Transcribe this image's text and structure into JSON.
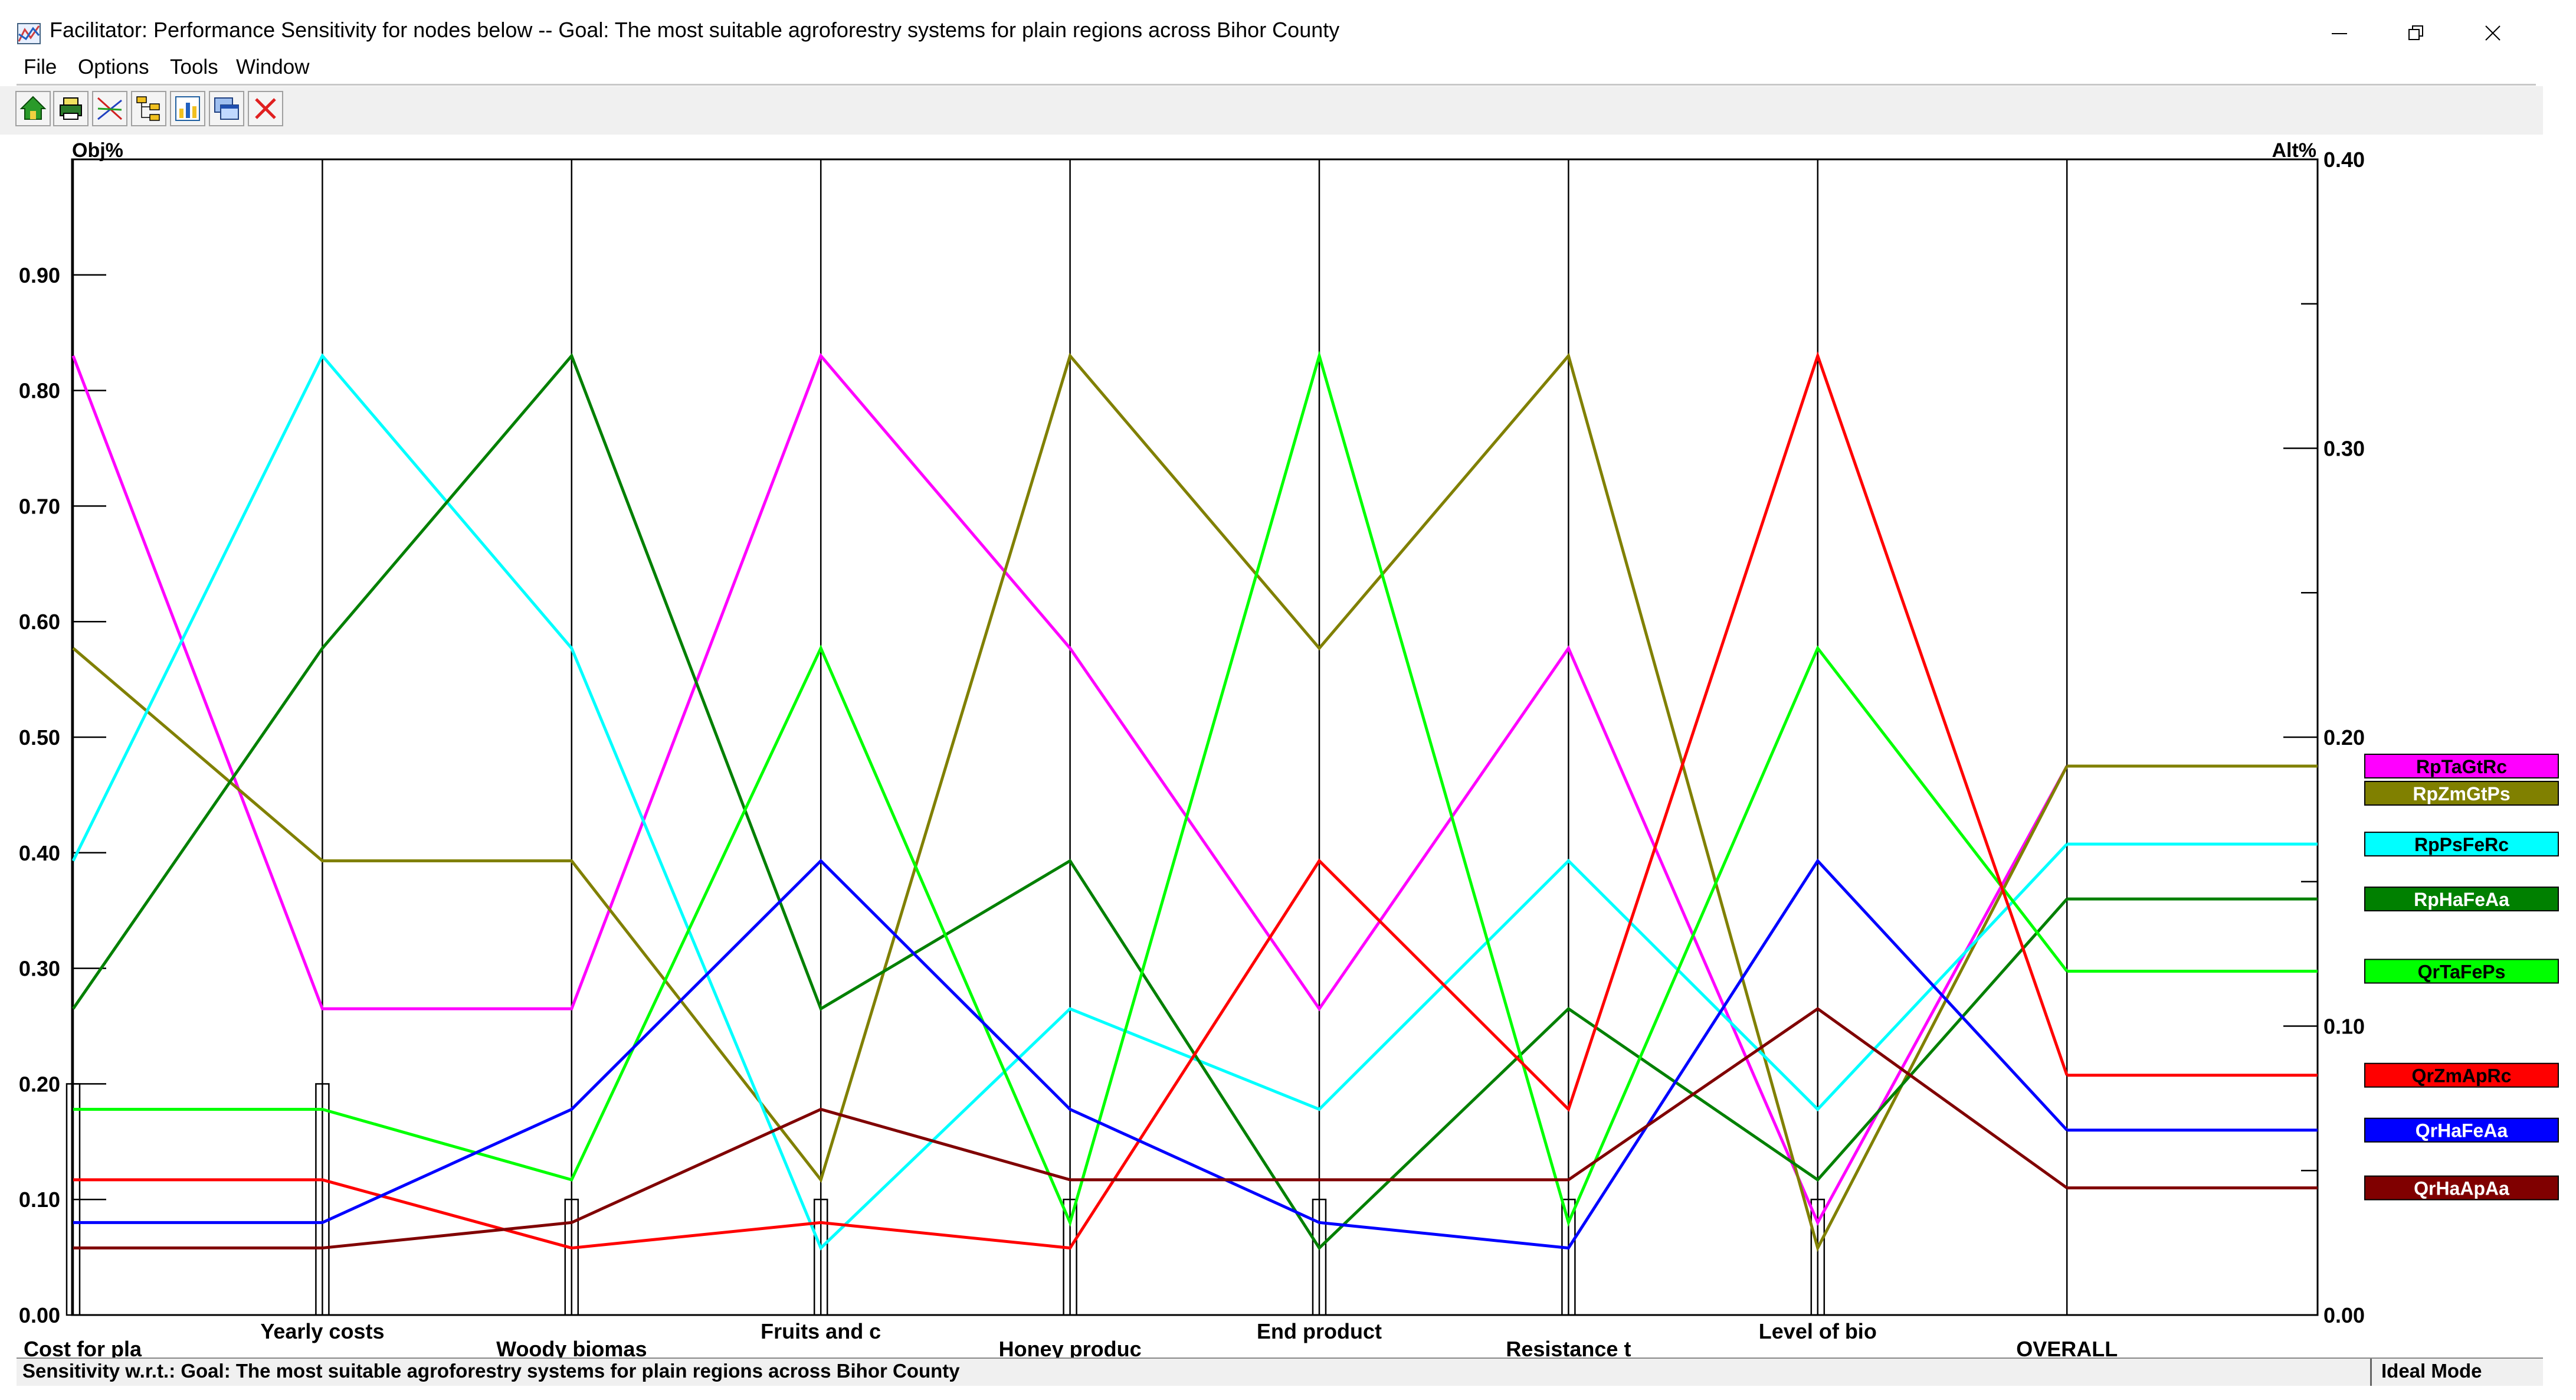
{
  "window": {
    "title": "Facilitator: Performance Sensitivity for nodes below -- Goal: The most suitable agroforestry systems for plain regions across Bihor County"
  },
  "menu": [
    "File",
    "Options",
    "Tools",
    "Window"
  ],
  "toolbar_icons": [
    "home-icon",
    "print-icon",
    "sensitivity-icon",
    "tree-icon",
    "chart-icon",
    "windows-icon",
    "close-x-icon"
  ],
  "status": {
    "text": "Sensitivity w.r.t.: Goal: The most suitable agroforestry systems for plain regions across Bihor County",
    "mode": "Ideal Mode"
  },
  "chart_data": {
    "type": "line",
    "left_axis_label": "Obj%",
    "right_axis_label": "Alt%",
    "left_ticks": [
      "0.00",
      "0.10",
      "0.20",
      "0.30",
      "0.40",
      "0.50",
      "0.60",
      "0.70",
      "0.80",
      "0.90"
    ],
    "right_ticks": [
      "0.00",
      "0.10",
      "0.20",
      "0.30",
      "0.40"
    ],
    "left_ylim": [
      0,
      1
    ],
    "right_ylim": [
      0,
      0.4
    ],
    "criteria": [
      "Cost for pla",
      "Yearly costs",
      "Woody biomas",
      "Fruits and c",
      "Honey produc",
      "End product",
      "Resistance t",
      "Level of bio"
    ],
    "overall_label": "OVERALL",
    "criteria_priority": [
      0.2,
      0.2,
      0.1,
      0.1,
      0.1,
      0.1,
      0.1,
      0.1
    ],
    "series": [
      {
        "name": "RpTaGtRc",
        "color": "#ff00ff",
        "values": [
          0.83,
          0.265,
          0.265,
          0.83,
          0.577,
          0.265,
          0.577,
          0.08
        ],
        "overall": 0.19
      },
      {
        "name": "RpZmGtPs",
        "color": "#808000",
        "values": [
          0.577,
          0.393,
          0.393,
          0.117,
          0.83,
          0.577,
          0.83,
          0.058
        ],
        "overall": 0.19
      },
      {
        "name": "RpPsFeRc",
        "color": "#00ffff",
        "values": [
          0.393,
          0.83,
          0.577,
          0.058,
          0.265,
          0.178,
          0.393,
          0.178
        ],
        "overall": 0.163
      },
      {
        "name": "RpHaFeAa",
        "color": "#008000",
        "values": [
          0.265,
          0.577,
          0.83,
          0.265,
          0.393,
          0.058,
          0.265,
          0.117
        ],
        "overall": 0.144
      },
      {
        "name": "QrTaFePs",
        "color": "#00ff00",
        "values": [
          0.178,
          0.178,
          0.117,
          0.577,
          0.08,
          0.83,
          0.08,
          0.577
        ],
        "overall": 0.119
      },
      {
        "name": "QrZmApRc",
        "color": "#ff0000",
        "values": [
          0.117,
          0.117,
          0.058,
          0.08,
          0.058,
          0.393,
          0.178,
          0.83
        ],
        "overall": 0.083
      },
      {
        "name": "QrHaFeAa",
        "color": "#0000ff",
        "values": [
          0.08,
          0.08,
          0.178,
          0.393,
          0.178,
          0.08,
          0.058,
          0.393
        ],
        "overall": 0.064
      },
      {
        "name": "QrHaApAa",
        "color": "#800000",
        "values": [
          0.058,
          0.058,
          0.08,
          0.178,
          0.117,
          0.117,
          0.117,
          0.265
        ],
        "overall": 0.044
      }
    ]
  }
}
